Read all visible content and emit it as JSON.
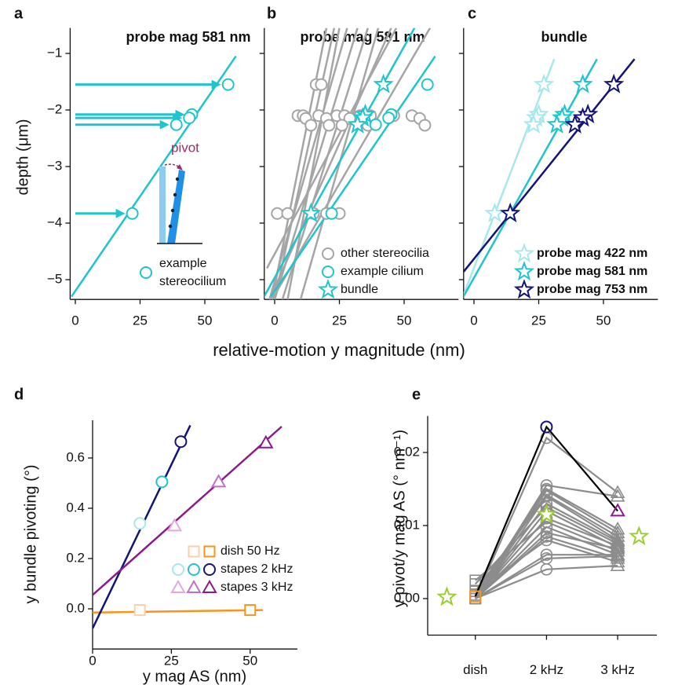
{
  "chart_data": [
    {
      "type": "scatter",
      "panel": "a",
      "title": "probe mag 581 nm",
      "ylabel": "depth (μm)",
      "annotation": "pivot",
      "xlim": [
        -2,
        71
      ],
      "ylim": [
        -5.35,
        -0.55
      ],
      "xticks": [
        0,
        25,
        50
      ],
      "yticks": [
        {
          "value": -1,
          "label": "−1"
        },
        {
          "value": -2,
          "label": "−2"
        },
        {
          "value": -3,
          "label": "−3"
        },
        {
          "value": -4,
          "label": "−4"
        },
        {
          "value": -5,
          "label": "−5"
        }
      ],
      "show_ytick_labels": true,
      "legend": true,
      "lines": [
        {
          "color": "#1fc4cc",
          "x": [
            -1.5,
            62
          ],
          "y": [
            -5.3,
            -1.05
          ]
        }
      ],
      "series": [
        {
          "name": "example stereocilium",
          "color": "#1fc4cc",
          "marker": "circle",
          "arrows": true,
          "x": [
            59,
            45,
            44,
            39,
            22
          ],
          "y": [
            -1.55,
            -2.08,
            -2.14,
            -2.26,
            -3.83
          ]
        }
      ]
    },
    {
      "type": "scatter",
      "panel": "b",
      "title": "probe mag 581 nm",
      "xlabel": "relative-motion y magnitude (nm)",
      "xlim": [
        -4,
        71
      ],
      "ylim": [
        -5.35,
        -0.55
      ],
      "xticks": [
        0,
        25,
        50
      ],
      "yticks": [
        -1,
        -2,
        -3,
        -4,
        -5
      ],
      "show_ytick_labels": false,
      "legend": true,
      "lines": [
        {
          "color": "#a5a5a5",
          "x": [
            -1,
            20
          ],
          "y": [
            -5.35,
            -0.55
          ]
        },
        {
          "color": "#a5a5a5",
          "x": [
            0,
            23
          ],
          "y": [
            -5.35,
            -0.55
          ]
        },
        {
          "color": "#a5a5a5",
          "x": [
            -2,
            28
          ],
          "y": [
            -5.35,
            -0.55
          ]
        },
        {
          "color": "#a5a5a5",
          "x": [
            0,
            32
          ],
          "y": [
            -5.35,
            -0.55
          ]
        },
        {
          "color": "#a5a5a5",
          "x": [
            3,
            36
          ],
          "y": [
            -5.35,
            -0.55
          ]
        },
        {
          "color": "#a5a5a5",
          "x": [
            -3,
            47
          ],
          "y": [
            -4.8,
            -0.55
          ]
        },
        {
          "color": "#a5a5a5",
          "x": [
            -2,
            45
          ],
          "y": [
            -5.35,
            -0.55
          ]
        },
        {
          "color": "#a5a5a5",
          "x": [
            -1,
            60
          ],
          "y": [
            -5.35,
            -0.55
          ]
        },
        {
          "color": "#a5a5a5",
          "x": [
            5,
            25
          ],
          "y": [
            -5.35,
            -0.55
          ]
        },
        {
          "color": "#a5a5a5",
          "x": [
            10,
            40
          ],
          "y": [
            -5.35,
            -0.55
          ]
        },
        {
          "color": "#1fc4cc",
          "x": [
            -1.5,
            62
          ],
          "y": [
            -5.3,
            -1.05
          ]
        },
        {
          "color": "#1fc4cc",
          "x": [
            -4.7,
            54
          ],
          "y": [
            -5.35,
            -0.55
          ]
        }
      ],
      "series": [
        {
          "name": "other stereocilia",
          "color": "#a5a5a5",
          "marker": "circle",
          "x": [
            16,
            18,
            9,
            11,
            17,
            24,
            27,
            33,
            37,
            46,
            53,
            12,
            20,
            29,
            56,
            14,
            21,
            26,
            36,
            58,
            1,
            5,
            15,
            20,
            25
          ],
          "y": [
            -1.55,
            -1.55,
            -2.1,
            -2.1,
            -2.1,
            -2.1,
            -2.1,
            -2.1,
            -2.1,
            -2.1,
            -2.1,
            -2.15,
            -2.15,
            -2.15,
            -2.15,
            -2.27,
            -2.27,
            -2.27,
            -2.27,
            -2.27,
            -3.83,
            -3.83,
            -3.83,
            -3.83,
            -3.83
          ]
        },
        {
          "name": "example cilium",
          "color": "#1fc4cc",
          "marker": "circle",
          "x": [
            59,
            45,
            44,
            39,
            22
          ],
          "y": [
            -1.55,
            -2.08,
            -2.14,
            -2.26,
            -3.83
          ]
        },
        {
          "name": "bundle",
          "color": "#1fc4cc",
          "marker": "star",
          "x": [
            42,
            35,
            34,
            32,
            14
          ],
          "y": [
            -1.55,
            -2.08,
            -2.14,
            -2.26,
            -3.83
          ]
        }
      ]
    },
    {
      "type": "scatter",
      "panel": "c",
      "title": "bundle",
      "xlim": [
        -4,
        71
      ],
      "ylim": [
        -5.35,
        -0.55
      ],
      "xticks": [
        0,
        25,
        50
      ],
      "yticks": [
        -1,
        -2,
        -3,
        -4,
        -5
      ],
      "show_ytick_labels": false,
      "legend": true,
      "lines": [
        {
          "color": "#a6e8ec",
          "x": [
            -4.7,
            31
          ],
          "y": [
            -5.35,
            -1.1
          ]
        },
        {
          "color": "#1fc4cc",
          "x": [
            -4.7,
            47.5
          ],
          "y": [
            -5.35,
            -1.1
          ]
        },
        {
          "color": "#141478",
          "x": [
            -4,
            62
          ],
          "y": [
            -4.86,
            -1.1
          ]
        }
      ],
      "series": [
        {
          "name": "probe mag 422 nm",
          "color": "#a6e8ec",
          "marker": "star",
          "x": [
            27,
            25,
            24,
            23,
            8
          ],
          "y": [
            -1.55,
            -2.08,
            -2.14,
            -2.26,
            -3.83
          ]
        },
        {
          "name": "probe mag 581 nm",
          "color": "#1fc4cc",
          "marker": "star",
          "x": [
            42,
            35,
            34,
            32,
            14
          ],
          "y": [
            -1.55,
            -2.08,
            -2.14,
            -2.26,
            -3.83
          ]
        },
        {
          "name": "probe mag 753 nm",
          "color": "#141478",
          "marker": "star",
          "x": [
            54,
            44,
            42,
            39,
            14
          ],
          "y": [
            -1.55,
            -2.08,
            -2.14,
            -2.26,
            -3.83
          ]
        }
      ]
    },
    {
      "type": "scatter",
      "panel": "d",
      "xlabel": "y mag AS (nm)",
      "ylabel": "y bundle pivoting (°)",
      "xlim": [
        0,
        65
      ],
      "ylim": [
        -0.16,
        0.75
      ],
      "xticks": [
        0,
        25,
        50
      ],
      "yticks": [
        {
          "value": 0,
          "label": "0.0"
        },
        0.2,
        0.4,
        0.6
      ],
      "show_ytick_labels": true,
      "legend": true,
      "lines": [
        {
          "color": "#f7931e",
          "x": [
            0,
            54
          ],
          "y": [
            -0.015,
            -0.005
          ]
        },
        {
          "color": "#141478",
          "x": [
            0,
            31
          ],
          "y": [
            -0.078,
            0.73
          ]
        },
        {
          "color": "#8b1a8b",
          "x": [
            0,
            60
          ],
          "y": [
            0.055,
            0.725
          ]
        }
      ],
      "series": [
        {
          "name": "dish 50 Hz",
          "marker": "square",
          "colors": [
            "#fdcfa6",
            "#f7931e"
          ],
          "x": [
            15,
            50
          ],
          "y": [
            -0.005,
            -0.005
          ]
        },
        {
          "name": "stapes 2 kHz",
          "marker": "circle",
          "colors": [
            "#a6e8ec",
            "#1fc4cc",
            "#141478"
          ],
          "x": [
            15,
            22,
            28
          ],
          "y": [
            0.34,
            0.505,
            0.665
          ]
        },
        {
          "name": "stapes 3 kHz",
          "marker": "triangle",
          "colors": [
            "#e3a6e3",
            "#c070c8",
            "#8b1a8b"
          ],
          "x": [
            26,
            40,
            55
          ],
          "y": [
            0.33,
            0.505,
            0.66
          ]
        }
      ]
    },
    {
      "type": "scatter",
      "panel": "e",
      "ylabel": "y pivot/y mag AS (° nm⁻¹)",
      "xlim": [
        -0.67,
        2.55
      ],
      "ylim": [
        -0.005,
        0.025
      ],
      "xticks": [
        {
          "value": 0,
          "label": "dish"
        },
        {
          "value": 1,
          "label": "2 kHz"
        },
        {
          "value": 2,
          "label": "3 kHz"
        }
      ],
      "yticks": [
        {
          "value": 0,
          "label": "0.00"
        },
        0.01,
        0.02
      ],
      "show_ytick_labels": true,
      "legend": false,
      "series": [
        {
          "color": "#8c8c8c",
          "line": true,
          "markers": [
            "square",
            "circle",
            "triangle"
          ],
          "x": [
            0,
            1,
            2
          ],
          "y": [
            0.0,
            0.022,
            0.0145
          ]
        },
        {
          "color": "#8c8c8c",
          "line": true,
          "markers": [
            "square",
            "circle",
            "triangle"
          ],
          "x": [
            0,
            1,
            2
          ],
          "y": [
            0.0,
            0.0155,
            0.014
          ]
        },
        {
          "color": "#8c8c8c",
          "line": true,
          "markers": [
            "square",
            "circle",
            "triangle"
          ],
          "x": [
            0,
            1,
            2
          ],
          "y": [
            0.0005,
            0.015,
            0.0095
          ]
        },
        {
          "color": "#8c8c8c",
          "line": true,
          "markers": [
            "square",
            "circle",
            "triangle"
          ],
          "x": [
            0,
            1,
            2
          ],
          "y": [
            0.0,
            0.0148,
            0.009
          ]
        },
        {
          "color": "#8c8c8c",
          "line": true,
          "markers": [
            "square",
            "circle",
            "triangle"
          ],
          "x": [
            0,
            1,
            2
          ],
          "y": [
            0.001,
            0.0142,
            0.0085
          ]
        },
        {
          "color": "#8c8c8c",
          "line": true,
          "markers": [
            "square",
            "circle",
            "triangle"
          ],
          "x": [
            0,
            1,
            2
          ],
          "y": [
            0.0,
            0.014,
            0.008
          ]
        },
        {
          "color": "#8c8c8c",
          "line": true,
          "markers": [
            "square",
            "circle",
            "triangle"
          ],
          "x": [
            0,
            1,
            2
          ],
          "y": [
            0.0,
            0.013,
            0.0078
          ]
        },
        {
          "color": "#8c8c8c",
          "line": true,
          "markers": [
            "square",
            "circle",
            "triangle"
          ],
          "x": [
            0,
            1,
            2
          ],
          "y": [
            0.002,
            0.0125,
            0.0075
          ]
        },
        {
          "color": "#8c8c8c",
          "line": true,
          "markers": [
            "square",
            "circle",
            "triangle"
          ],
          "x": [
            0,
            1,
            2
          ],
          "y": [
            0.0,
            0.012,
            0.007
          ]
        },
        {
          "color": "#8c8c8c",
          "line": true,
          "markers": [
            "square",
            "circle",
            "triangle"
          ],
          "x": [
            0,
            1,
            2
          ],
          "y": [
            0.0,
            0.011,
            0.0072
          ]
        },
        {
          "color": "#8c8c8c",
          "line": true,
          "markers": [
            "square",
            "circle",
            "triangle"
          ],
          "x": [
            0,
            1,
            2
          ],
          "y": [
            0.0025,
            0.0105,
            0.0065
          ]
        },
        {
          "color": "#8c8c8c",
          "line": true,
          "markers": [
            "square",
            "circle",
            "triangle"
          ],
          "x": [
            0,
            1,
            2
          ],
          "y": [
            0.0,
            0.0098,
            0.006
          ]
        },
        {
          "color": "#8c8c8c",
          "line": true,
          "markers": [
            "square",
            "circle",
            "triangle"
          ],
          "x": [
            0,
            1,
            2
          ],
          "y": [
            0.0,
            0.009,
            0.0068
          ]
        },
        {
          "color": "#8c8c8c",
          "line": true,
          "markers": [
            "square",
            "circle",
            "triangle"
          ],
          "x": [
            0,
            1,
            2
          ],
          "y": [
            0.0,
            0.0085,
            0.0055
          ]
        },
        {
          "color": "#8c8c8c",
          "line": true,
          "markers": [
            "square",
            "circle",
            "triangle"
          ],
          "x": [
            0,
            1,
            2
          ],
          "y": [
            0.001,
            0.008,
            0.005
          ]
        },
        {
          "color": "#8c8c8c",
          "line": true,
          "markers": [
            "square",
            "circle",
            "triangle"
          ],
          "x": [
            0,
            1,
            2
          ],
          "y": [
            0.0,
            0.006,
            0.006
          ]
        },
        {
          "color": "#8c8c8c",
          "line": true,
          "markers": [
            "square",
            "circle",
            "triangle"
          ],
          "x": [
            0,
            1,
            2
          ],
          "y": [
            0.0,
            0.0055,
            0.0058
          ]
        },
        {
          "color": "#8c8c8c",
          "line": true,
          "markers": [
            "square",
            "circle",
            "triangle"
          ],
          "x": [
            0,
            1,
            2
          ],
          "y": [
            0.0,
            0.004,
            0.0045
          ]
        },
        {
          "color": "#000000",
          "line": true,
          "markers": [
            "square",
            "circle",
            "triangle"
          ],
          "colors": [
            "#f7931e",
            "#141478",
            "#8b1a8b"
          ],
          "x": [
            0,
            1,
            2
          ],
          "y": [
            0.0003,
            0.0235,
            0.012
          ]
        },
        {
          "color": "#9acd32",
          "marker": "star",
          "x": [
            -0.4,
            1,
            2.3
          ],
          "y": [
            0.0002,
            0.0115,
            0.0085
          ]
        }
      ]
    }
  ]
}
